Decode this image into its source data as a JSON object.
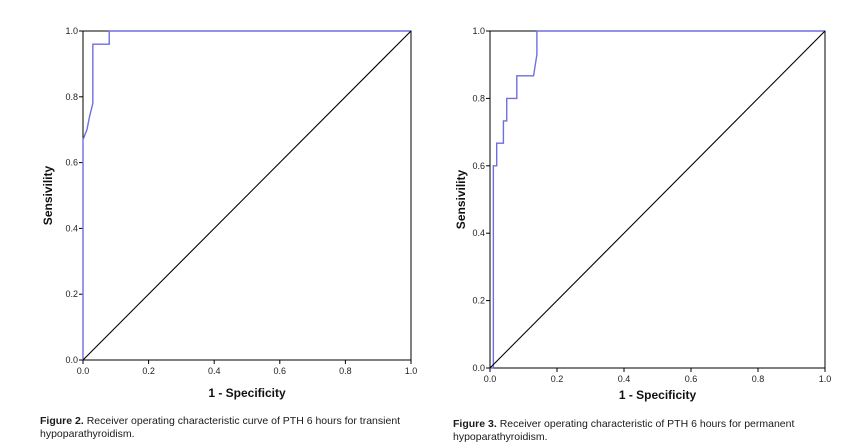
{
  "chart_data": [
    {
      "type": "line",
      "caption_label": "Figure 2.",
      "caption_text": "Receiver operating characteristic curve of PTH 6 hours for transient hypoparathyroidism.",
      "xlabel": "1 - Specificity",
      "ylabel": "Sensivility",
      "xlim": [
        0,
        1
      ],
      "ylim": [
        0,
        1
      ],
      "xticks": [
        "0.0",
        "0.2",
        "0.4",
        "0.6",
        "0.8",
        "1.0"
      ],
      "yticks": [
        "0.0",
        "0.2",
        "0.4",
        "0.6",
        "0.8",
        "1.0"
      ],
      "grid": false,
      "legend": "none",
      "colors": {
        "roc": "#6f6fe0",
        "reference": "#000000"
      },
      "series": [
        {
          "role": "roc",
          "x": [
            0,
            0,
            0.012,
            0.02,
            0.025,
            0.03,
            0.03,
            0.08,
            0.08,
            1.0
          ],
          "y": [
            0,
            0.67,
            0.7,
            0.74,
            0.76,
            0.78,
            0.96,
            0.96,
            1.0,
            1.0
          ]
        },
        {
          "role": "reference",
          "x": [
            0,
            1
          ],
          "y": [
            0,
            1
          ]
        }
      ]
    },
    {
      "type": "line",
      "caption_label": "Figure 3.",
      "caption_text": "Receiver operating characteristic of PTH 6 hours for permanent hypoparathyroidism.",
      "xlabel": "1 - Specificity",
      "ylabel": "Sensivility",
      "xlim": [
        0,
        1
      ],
      "ylim": [
        0,
        1
      ],
      "xticks": [
        "0.0",
        "0.2",
        "0.4",
        "0.6",
        "0.8",
        "1.0"
      ],
      "yticks": [
        "0.0",
        "0.2",
        "0.4",
        "0.6",
        "0.8",
        "1.0"
      ],
      "grid": false,
      "legend": "none",
      "colors": {
        "roc": "#6f6fe0",
        "reference": "#000000"
      },
      "series": [
        {
          "role": "roc",
          "x": [
            0,
            0.01,
            0.01,
            0.02,
            0.02,
            0.04,
            0.04,
            0.05,
            0.05,
            0.08,
            0.08,
            0.13,
            0.14,
            0.14,
            1.0
          ],
          "y": [
            0,
            0,
            0.6,
            0.6,
            0.667,
            0.667,
            0.733,
            0.733,
            0.8,
            0.8,
            0.867,
            0.867,
            0.93,
            1.0,
            1.0
          ]
        },
        {
          "role": "reference",
          "x": [
            0,
            1
          ],
          "y": [
            0,
            1
          ]
        }
      ]
    }
  ]
}
